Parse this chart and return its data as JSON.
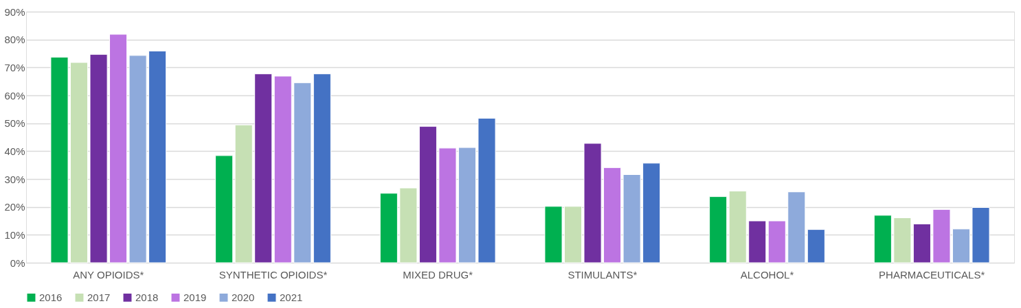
{
  "chart_data": {
    "type": "bar",
    "categories": [
      "ANY OPIOIDS*",
      "SYNTHETIC OPIOIDS*",
      "MIXED DRUG*",
      "STIMULANTS*",
      "ALCOHOL*",
      "PHARMACEUTICALS*"
    ],
    "series": [
      {
        "name": "2016",
        "color": "#00b050",
        "values": [
          73.7,
          38.4,
          24.9,
          20.2,
          23.7,
          17.0
        ]
      },
      {
        "name": "2017",
        "color": "#c6e0b4",
        "values": [
          71.8,
          49.4,
          26.8,
          20.2,
          25.7,
          16.1
        ]
      },
      {
        "name": "2018",
        "color": "#7030a0",
        "values": [
          74.7,
          67.7,
          48.9,
          42.8,
          15.0,
          13.9
        ]
      },
      {
        "name": "2019",
        "color": "#bc74e2",
        "values": [
          81.9,
          66.9,
          41.1,
          34.1,
          15.0,
          19.1
        ]
      },
      {
        "name": "2020",
        "color": "#8eaadb",
        "values": [
          74.3,
          64.5,
          41.3,
          31.6,
          25.4,
          12.1
        ]
      },
      {
        "name": "2021",
        "color": "#4472c4",
        "values": [
          75.9,
          67.7,
          51.8,
          35.7,
          11.9,
          19.8
        ]
      }
    ],
    "ylim": [
      0,
      90
    ],
    "yticks": [
      {
        "value": 0,
        "label": "0%"
      },
      {
        "value": 10,
        "label": "10%"
      },
      {
        "value": 20,
        "label": "20%"
      },
      {
        "value": 30,
        "label": "30%"
      },
      {
        "value": 40,
        "label": "40%"
      },
      {
        "value": 50,
        "label": "50%"
      },
      {
        "value": 60,
        "label": "60%"
      },
      {
        "value": 70,
        "label": "70%"
      },
      {
        "value": 80,
        "label": "80%"
      },
      {
        "value": 90,
        "label": "90%"
      }
    ],
    "grid": "y",
    "legend": "bottom"
  }
}
